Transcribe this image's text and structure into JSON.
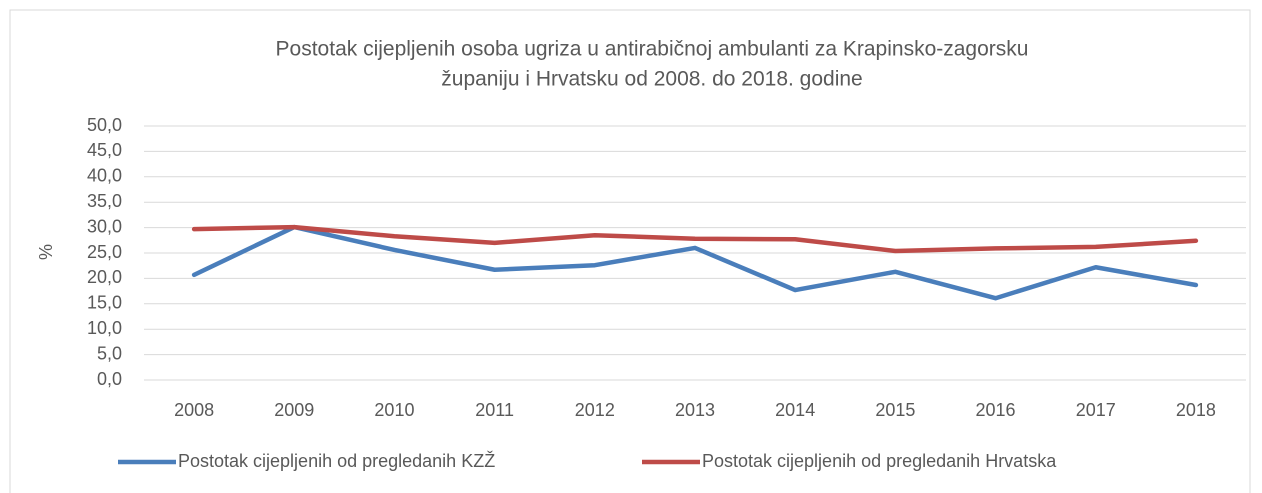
{
  "chart_data": {
    "type": "line",
    "title": [
      "Postotak cijepljenih osoba ugriza u antirabičnoj ambulanti za Krapinsko-zagorsku",
      "županiju i Hrvatsku od 2008. do 2018. godine"
    ],
    "y_label": "%",
    "categories": [
      "2008",
      "2009",
      "2010",
      "2011",
      "2012",
      "2013",
      "2014",
      "2015",
      "2016",
      "2017",
      "2018"
    ],
    "series": [
      {
        "name": "Postotak cijepljenih od pregledanih KZŽ",
        "color": "#4a7ebb",
        "values": [
          20.7,
          30.1,
          25.6,
          21.7,
          22.6,
          26.0,
          17.7,
          21.3,
          16.1,
          22.2,
          18.7
        ]
      },
      {
        "name": "Postotak cijepljenih od pregledanih Hrvatska",
        "color": "#be4b48",
        "values": [
          29.7,
          30.1,
          28.3,
          27.0,
          28.5,
          27.8,
          27.7,
          25.4,
          25.9,
          26.2,
          27.4
        ]
      }
    ],
    "ylim": [
      0,
      50
    ],
    "yticks": [
      {
        "value": 0,
        "label": "0,0"
      },
      {
        "value": 5,
        "label": "5,0"
      },
      {
        "value": 10,
        "label": "10,0"
      },
      {
        "value": 15,
        "label": "15,0"
      },
      {
        "value": 20,
        "label": "20,0"
      },
      {
        "value": 25,
        "label": "25,0"
      },
      {
        "value": 30,
        "label": "30,0"
      },
      {
        "value": 35,
        "label": "35,0"
      },
      {
        "value": 40,
        "label": "40,0"
      },
      {
        "value": 45,
        "label": "45,0"
      },
      {
        "value": 50,
        "label": "50,0"
      }
    ],
    "grid": true,
    "legend": "bottom"
  }
}
